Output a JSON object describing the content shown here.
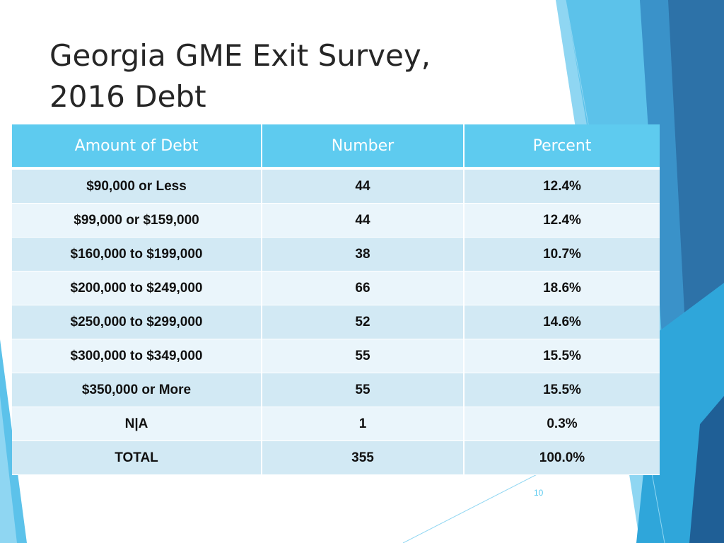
{
  "slide": {
    "title_line1": "Georgia GME Exit Survey,",
    "title_line2": "2016 Debt",
    "page_number": "10"
  },
  "table": {
    "headers": [
      "Amount of Debt",
      "Number",
      "Percent"
    ],
    "rows": [
      [
        "$90,000 or Less",
        "44",
        "12.4%"
      ],
      [
        "$99,000 or $159,000",
        "44",
        "12.4%"
      ],
      [
        "$160,000 to $199,000",
        "38",
        "10.7%"
      ],
      [
        "$200,000 to $249,000",
        "66",
        "18.6%"
      ],
      [
        "$250,000 to $299,000",
        "52",
        "14.6%"
      ],
      [
        "$300,000 to $349,000",
        "55",
        "15.5%"
      ],
      [
        "$350,000 or More",
        "55",
        "15.5%"
      ],
      [
        "N|A",
        "1",
        "0.3%"
      ],
      [
        "TOTAL",
        "355",
        "100.0%"
      ]
    ]
  },
  "colors": {
    "header_bg": "#5ecbef",
    "row_dark": "#d2e9f4",
    "row_light": "#eaf5fb",
    "title_text": "#262626",
    "accent_blue": "#2d72a8"
  }
}
